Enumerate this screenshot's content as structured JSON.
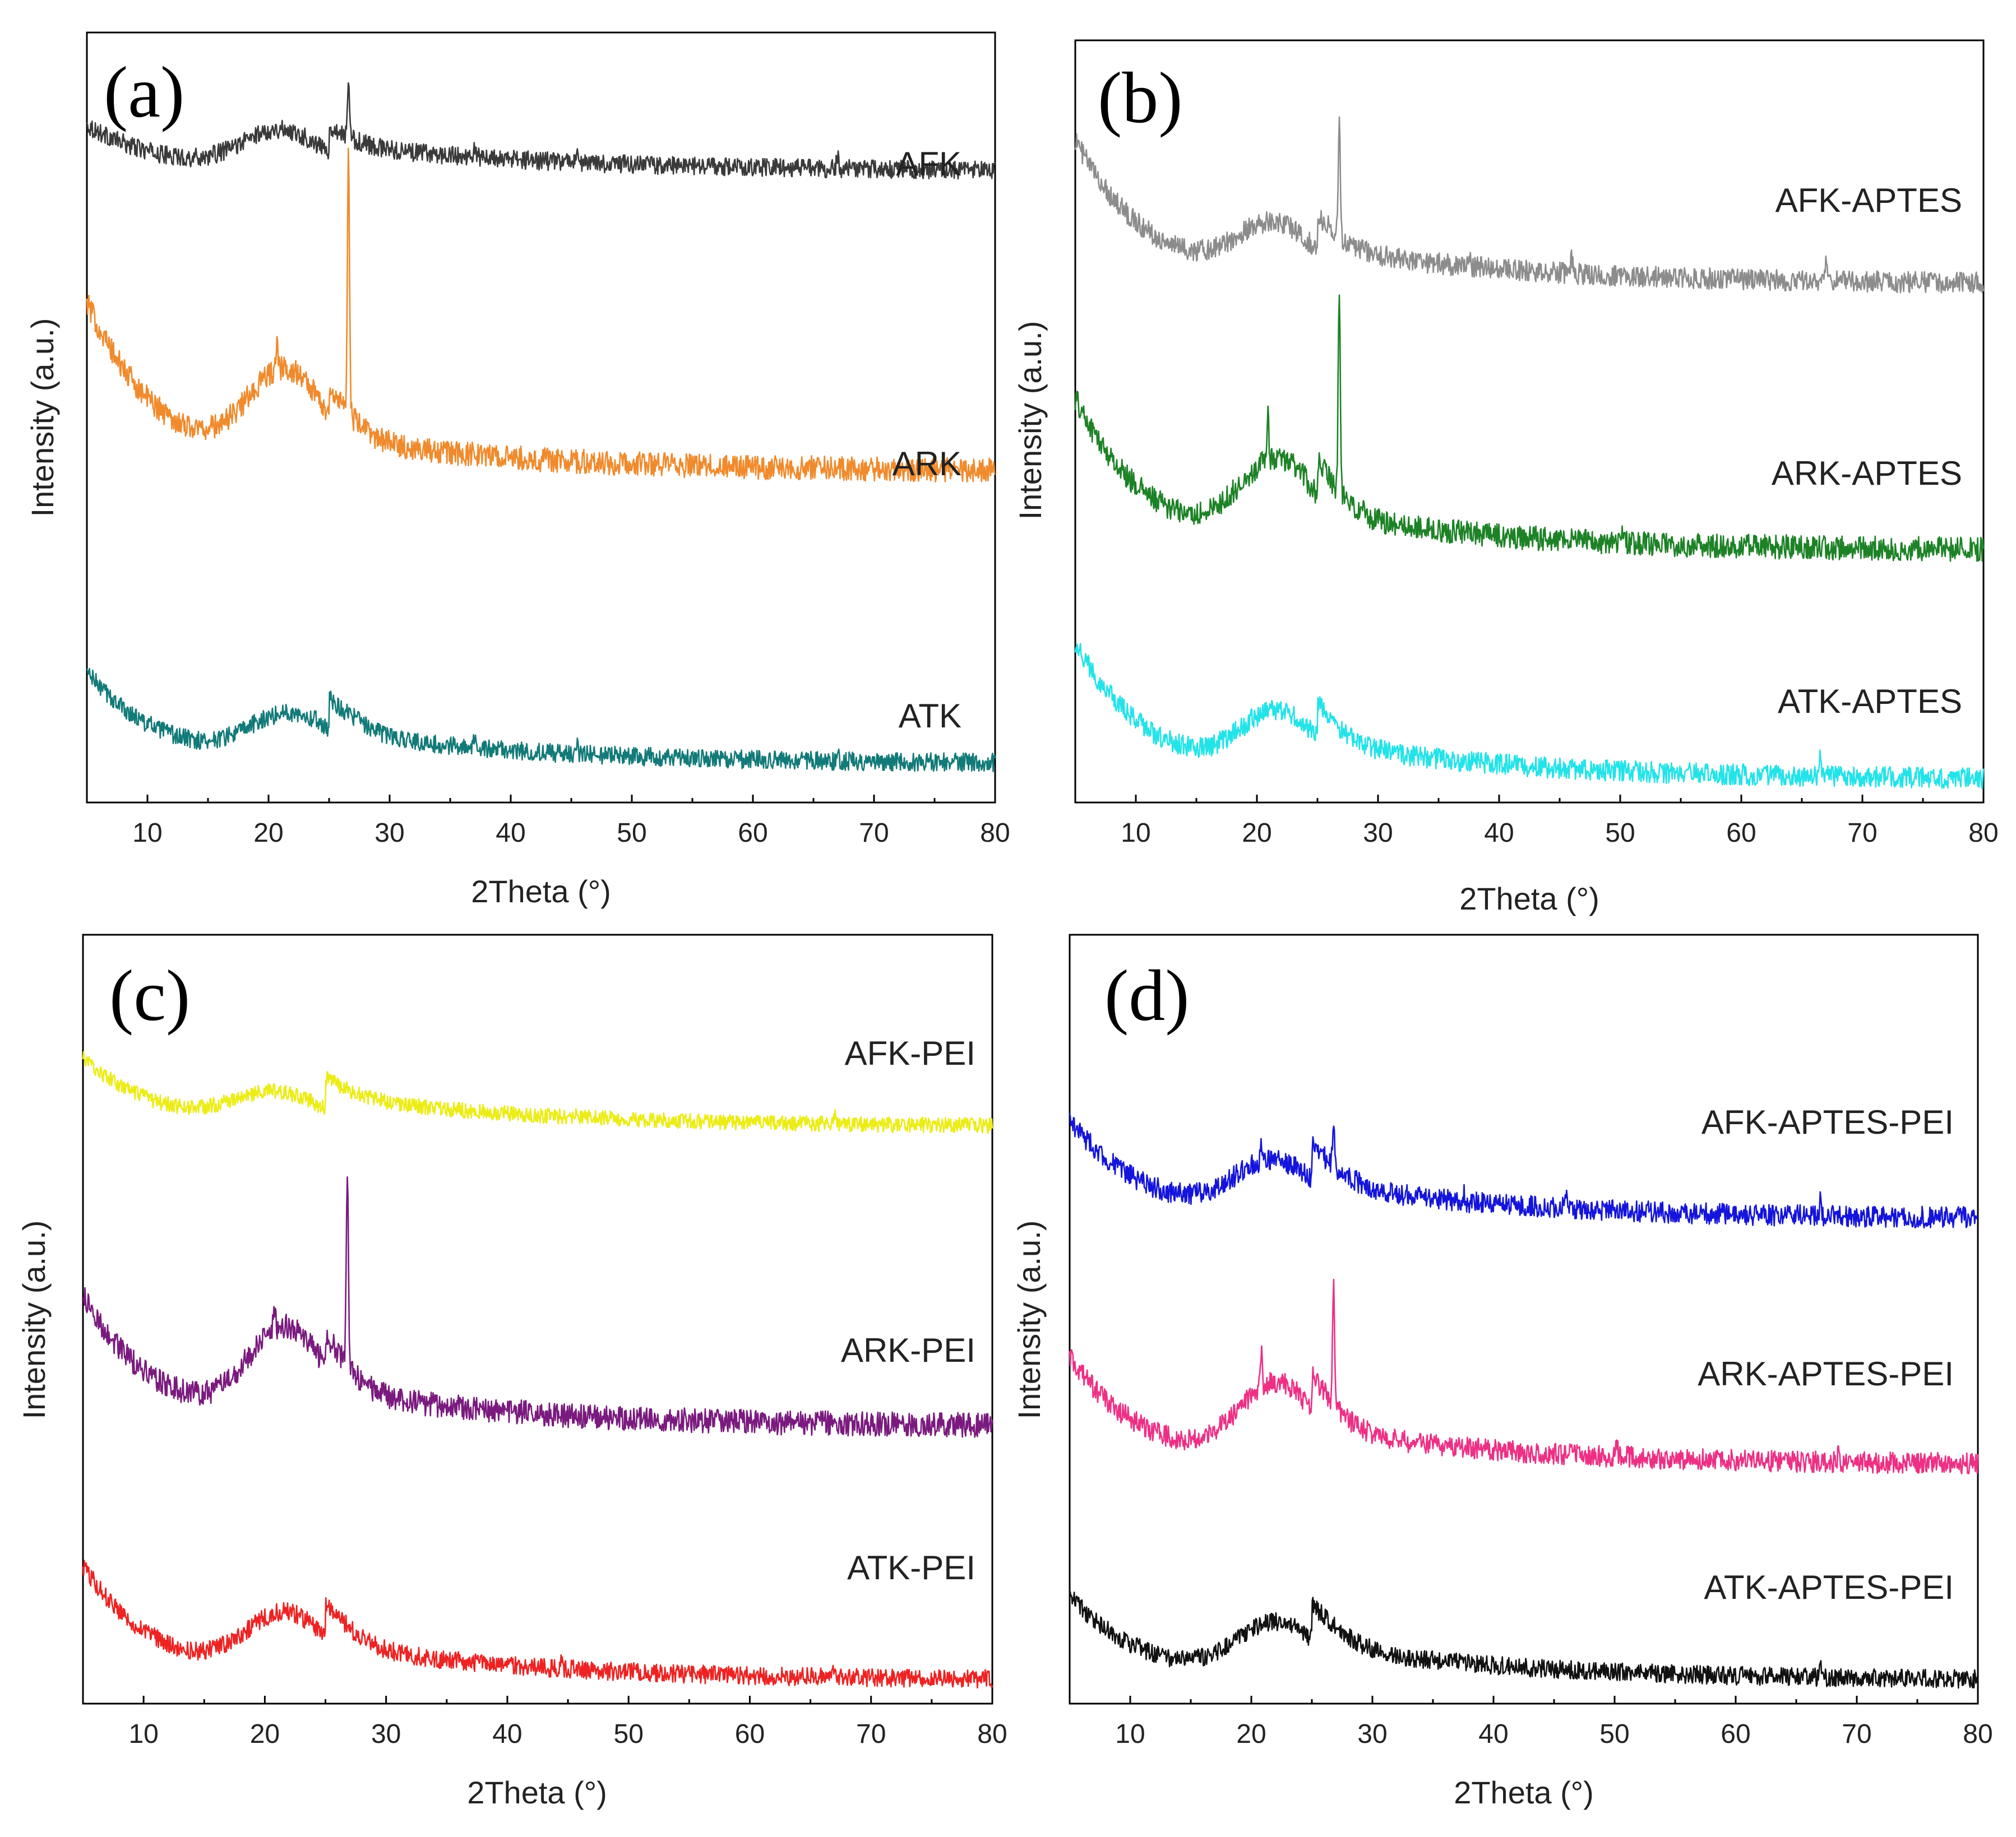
{
  "chart_data": [
    {
      "type": "line",
      "panel_label": "(a)",
      "xlabel": "2Theta (°)",
      "ylabel": "Intensity (a.u.)",
      "xlim": [
        5,
        80
      ],
      "xticks": [
        10,
        20,
        30,
        40,
        50,
        60,
        70,
        80
      ],
      "y_ticks_shown": false,
      "series": [
        {
          "name": "AFK",
          "color": "#3a3a3a",
          "baseline": 0.82,
          "curve": {
            "low": 0.06,
            "hump": 0.05,
            "hump_center": 21,
            "hump_width": 4.5,
            "decay": 0.035,
            "noise": 0.012,
            "sharp": [
              [
                26.6,
                0.07
              ],
              [
                45.5,
                0.012
              ],
              [
                67,
                0.018
              ],
              [
                37,
                0.01
              ]
            ]
          }
        },
        {
          "name": "ARK",
          "color": "#f08a2c",
          "baseline": 0.43,
          "curve": {
            "low": 0.22,
            "hump": 0.12,
            "hump_center": 21.5,
            "hump_width": 4.5,
            "decay": 0.04,
            "noise": 0.016,
            "sharp": [
              [
                26.6,
                0.35
              ],
              [
                20.7,
                0.03
              ]
            ]
          }
        },
        {
          "name": "ATK",
          "color": "#127a78",
          "baseline": 0.05,
          "curve": {
            "low": 0.12,
            "hump": 0.06,
            "hump_center": 22,
            "hump_width": 5,
            "decay": 0.04,
            "noise": 0.012,
            "sharp": [
              [
                67,
                0.02
              ],
              [
                45.5,
                0.01
              ],
              [
                37,
                0.012
              ]
            ]
          }
        }
      ]
    },
    {
      "type": "line",
      "panel_label": "(b)",
      "xlabel": "2Theta (°)",
      "ylabel": "Intensity (a.u.)",
      "xlim": [
        5,
        80
      ],
      "xticks": [
        10,
        20,
        30,
        40,
        50,
        60,
        70,
        80
      ],
      "y_ticks_shown": false,
      "series": [
        {
          "name": "AFK-APTES",
          "color": "#8c8c8c",
          "baseline": 0.68,
          "curve": {
            "low": 0.19,
            "hump": 0.07,
            "hump_center": 21.5,
            "hump_width": 4.5,
            "decay": 0.045,
            "noise": 0.014,
            "sharp": [
              [
                26.8,
                0.15
              ],
              [
                46,
                0.02
              ],
              [
                67,
                0.03
              ],
              [
                37.5,
                0.015
              ]
            ]
          }
        },
        {
          "name": "ARK-APTES",
          "color": "#1d8226",
          "baseline": 0.33,
          "curve": {
            "low": 0.2,
            "hump": 0.11,
            "hump_center": 21.8,
            "hump_width": 4.5,
            "decay": 0.045,
            "noise": 0.016,
            "sharp": [
              [
                26.8,
                0.27
              ],
              [
                20.9,
                0.06
              ],
              [
                50.2,
                0.015
              ]
            ]
          }
        },
        {
          "name": "ATK-APTES",
          "color": "#22e3e8",
          "baseline": 0.03,
          "curve": {
            "low": 0.18,
            "hump": 0.08,
            "hump_center": 21.8,
            "hump_width": 4.5,
            "decay": 0.045,
            "noise": 0.014,
            "sharp": [
              [
                46,
                0.015
              ],
              [
                66.5,
                0.02
              ]
            ]
          }
        }
      ]
    },
    {
      "type": "line",
      "panel_label": "(c)",
      "xlabel": "2Theta (°)",
      "ylabel": "Intensity (a.u.)",
      "xlim": [
        5,
        80
      ],
      "xticks": [
        10,
        20,
        30,
        40,
        50,
        60,
        70,
        80
      ],
      "y_ticks_shown": false,
      "series": [
        {
          "name": "AFK-PEI",
          "color": "#ecec16",
          "baseline": 0.75,
          "curve": {
            "low": 0.09,
            "hump": 0.04,
            "hump_center": 21,
            "hump_width": 5,
            "decay": 0.04,
            "noise": 0.01,
            "sharp": [
              [
                67,
                0.012
              ],
              [
                45.5,
                0.008
              ]
            ]
          }
        },
        {
          "name": "ARK-PEI",
          "color": "#7a1a7e",
          "baseline": 0.36,
          "curve": {
            "low": 0.17,
            "hump": 0.12,
            "hump_center": 21.8,
            "hump_width": 4.5,
            "decay": 0.045,
            "noise": 0.016,
            "sharp": [
              [
                26.8,
                0.26
              ],
              [
                20.8,
                0.03
              ]
            ]
          }
        },
        {
          "name": "ATK-PEI",
          "color": "#ee2222",
          "baseline": 0.03,
          "curve": {
            "low": 0.15,
            "hump": 0.08,
            "hump_center": 21.8,
            "hump_width": 4.8,
            "decay": 0.045,
            "noise": 0.012,
            "sharp": [
              [
                67,
                0.015
              ],
              [
                44.5,
                0.01
              ]
            ]
          }
        }
      ]
    },
    {
      "type": "line",
      "panel_label": "(d)",
      "xlabel": "2Theta (°)",
      "ylabel": "Intensity (a.u.)",
      "xlim": [
        5,
        80
      ],
      "xticks": [
        10,
        20,
        30,
        40,
        50,
        60,
        70,
        80
      ],
      "y_ticks_shown": false,
      "series": [
        {
          "name": "AFK-APTES-PEI",
          "color": "#1414dc",
          "baseline": 0.63,
          "curve": {
            "low": 0.13,
            "hump": 0.07,
            "hump_center": 22,
            "hump_width": 4.8,
            "decay": 0.045,
            "noise": 0.014,
            "sharp": [
              [
                26.8,
                0.05
              ],
              [
                20.8,
                0.02
              ],
              [
                46,
                0.02
              ],
              [
                67,
                0.025
              ],
              [
                37.5,
                0.012
              ]
            ]
          }
        },
        {
          "name": "ARK-APTES-PEI",
          "color": "#ee2f84",
          "baseline": 0.31,
          "curve": {
            "low": 0.14,
            "hump": 0.1,
            "hump_center": 22.2,
            "hump_width": 4.5,
            "decay": 0.045,
            "noise": 0.014,
            "sharp": [
              [
                26.8,
                0.15
              ],
              [
                20.8,
                0.05
              ],
              [
                50.2,
                0.012
              ],
              [
                68.5,
                0.01
              ]
            ]
          }
        },
        {
          "name": "ATK-APTES-PEI",
          "color": "#111111",
          "baseline": 0.03,
          "curve": {
            "low": 0.11,
            "hump": 0.07,
            "hump_center": 22.2,
            "hump_width": 4.8,
            "decay": 0.045,
            "noise": 0.012,
            "sharp": [
              [
                67,
                0.012
              ],
              [
                46,
                0.008
              ]
            ]
          }
        }
      ]
    }
  ]
}
